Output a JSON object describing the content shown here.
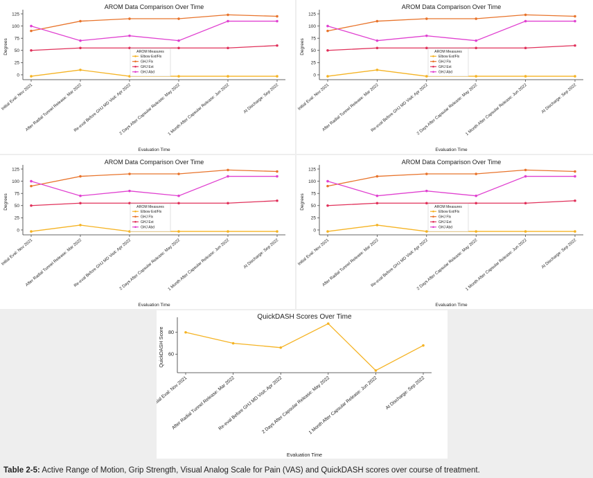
{
  "caption": {
    "label": "Table 2-5:",
    "text": " Active Range of Motion, Grip Strength, Visual Analog Scale for Pain (VAS) and QuickDASH scores over course of treatment."
  },
  "chart_data": [
    {
      "type": "line",
      "title": "AROM Data Comparison Over Time",
      "xlabel": "Evaluation Time",
      "ylabel": "Degrees",
      "ylim": [
        -10,
        125
      ],
      "yticks": [
        0,
        25,
        50,
        75,
        100,
        125
      ],
      "legend_title": "AROM Measures",
      "legend_position": "center",
      "categories": [
        "Initial Eval: Nov 2021",
        "After Radial Tunnel Release: Mar 2022",
        "Re-eval Before GHJ MD Visit: Apr 2022",
        "2 Days After Capsular Release: May 2022",
        "1 Month After Capsular Release: Jun 2022",
        "At Discharge: Sep 2022"
      ],
      "series": [
        {
          "name": "Elbow Ext/Flx",
          "color": "#f5b323",
          "values": [
            -3,
            10,
            -3,
            -3,
            -3,
            -3
          ]
        },
        {
          "name": "GHJ Flx",
          "color": "#e8732a",
          "values": [
            90,
            110,
            115,
            115,
            123,
            120
          ]
        },
        {
          "name": "GHJ Ext",
          "color": "#e0305a",
          "values": [
            50,
            55,
            55,
            55,
            55,
            60
          ]
        },
        {
          "name": "GHJ Abd",
          "color": "#e040d0",
          "values": [
            100,
            70,
            80,
            70,
            110,
            110
          ]
        }
      ]
    },
    {
      "type": "line",
      "title": "AROM Data Comparison Over Time",
      "xlabel": "Evaluation Time",
      "ylabel": "Degrees",
      "ylim": [
        -10,
        125
      ],
      "yticks": [
        0,
        25,
        50,
        75,
        100,
        125
      ],
      "legend_title": "AROM Measures",
      "legend_position": "center",
      "categories": [
        "Initial Eval: Nov 2021",
        "After Radial Tunnel Release: Mar 2022",
        "Re-eval Before GHJ MD Visit: Apr 2022",
        "2 Days After Capsular Release: May 2022",
        "1 Month After Capsular Release: Jun 2022",
        "At Discharge: Sep 2022"
      ],
      "series": [
        {
          "name": "Elbow Ext/Flx",
          "color": "#f5b323",
          "values": [
            -3,
            10,
            -3,
            -3,
            -3,
            -3
          ]
        },
        {
          "name": "GHJ Flx",
          "color": "#e8732a",
          "values": [
            90,
            110,
            115,
            115,
            123,
            120
          ]
        },
        {
          "name": "GHJ Ext",
          "color": "#e0305a",
          "values": [
            50,
            55,
            55,
            55,
            55,
            60
          ]
        },
        {
          "name": "GHJ Abd",
          "color": "#e040d0",
          "values": [
            100,
            70,
            80,
            70,
            110,
            110
          ]
        }
      ]
    },
    {
      "type": "line",
      "title": "AROM Data Comparison Over Time",
      "xlabel": "Evaluation Time",
      "ylabel": "Degrees",
      "ylim": [
        -10,
        125
      ],
      "yticks": [
        0,
        25,
        50,
        75,
        100,
        125
      ],
      "legend_title": "AROM Measures",
      "legend_position": "center",
      "categories": [
        "Initial Eval: Nov 2021",
        "After Radial Tunnel Release: Mar 2022",
        "Re-eval Before GHJ MD Visit: Apr 2022",
        "2 Days After Capsular Release: May 2022",
        "1 Month After Capsular Release: Jun 2022",
        "At Discharge: Sep 2022"
      ],
      "series": [
        {
          "name": "Elbow Ext/Flx",
          "color": "#f5b323",
          "values": [
            -3,
            10,
            -3,
            -3,
            -3,
            -3
          ]
        },
        {
          "name": "GHJ Flx",
          "color": "#e8732a",
          "values": [
            90,
            110,
            115,
            115,
            123,
            120
          ]
        },
        {
          "name": "GHJ Ext",
          "color": "#e0305a",
          "values": [
            50,
            55,
            55,
            55,
            55,
            60
          ]
        },
        {
          "name": "GHJ Abd",
          "color": "#e040d0",
          "values": [
            100,
            70,
            80,
            70,
            110,
            110
          ]
        }
      ]
    },
    {
      "type": "line",
      "title": "AROM Data Comparison Over Time",
      "xlabel": "Evaluation Time",
      "ylabel": "Degrees",
      "ylim": [
        -10,
        125
      ],
      "yticks": [
        0,
        25,
        50,
        75,
        100,
        125
      ],
      "legend_title": "AROM Measures",
      "legend_position": "center",
      "categories": [
        "Initial Eval: Nov 2021",
        "After Radial Tunnel Release: Mar 2022",
        "Re-eval Before GHJ MD Visit: Apr 2022",
        "2 Days After Capsular Release: May 2022",
        "1 Month After Capsular Release: Jun 2022",
        "At Discharge: Sep 2022"
      ],
      "series": [
        {
          "name": "Elbow Ext/Flx",
          "color": "#f5b323",
          "values": [
            -3,
            10,
            -3,
            -3,
            -3,
            -3
          ]
        },
        {
          "name": "GHJ Flx",
          "color": "#e8732a",
          "values": [
            90,
            110,
            115,
            115,
            123,
            120
          ]
        },
        {
          "name": "GHJ Ext",
          "color": "#e0305a",
          "values": [
            50,
            55,
            55,
            55,
            55,
            60
          ]
        },
        {
          "name": "GHJ Abd",
          "color": "#e040d0",
          "values": [
            100,
            70,
            80,
            70,
            110,
            110
          ]
        }
      ]
    },
    {
      "type": "line",
      "title": "QuickDASH Scores Over Time",
      "xlabel": "Evaluation Time",
      "ylabel": "QuickDASH Score",
      "ylim": [
        43,
        90
      ],
      "yticks": [
        60,
        80
      ],
      "categories": [
        "Initial Eval: Nov 2021",
        "After Radial Tunnel Release: Mar 2022",
        "Re-eval Before GHJ MD Visit: Apr 2022",
        "2 Days After Capsular Release: May 2022",
        "1 Month After Capsular Release: Jun 2022",
        "At Discharge: Sep 2022"
      ],
      "series": [
        {
          "name": "QuickDASH",
          "color": "#f5b323",
          "values": [
            80,
            70,
            66,
            88,
            45,
            68
          ]
        }
      ]
    }
  ]
}
